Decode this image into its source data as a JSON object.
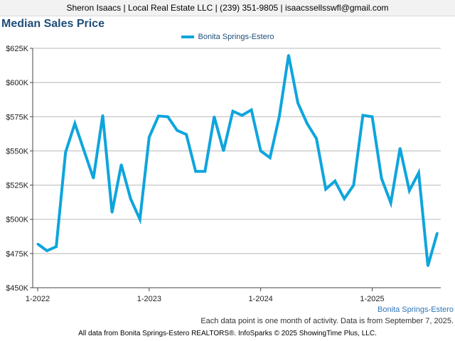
{
  "header": {
    "contact_line": "Sheron Isaacs | Local Real Estate LLC | (239) 351-9805 | isaacssellsswfl@gmail.com"
  },
  "chart_data": {
    "type": "line",
    "title": "Median Sales Price",
    "series": [
      {
        "name": "Bonita Springs-Estero",
        "color": "#0ea5dd",
        "values": [
          482000,
          477000,
          480000,
          549000,
          570000,
          550000,
          530000,
          576000,
          505000,
          540000,
          515000,
          500000,
          560000,
          575500,
          575000,
          565000,
          562000,
          535000,
          535000,
          575000,
          550000,
          579000,
          576000,
          580000,
          550000,
          545000,
          575000,
          620000,
          585000,
          570000,
          559000,
          522000,
          528000,
          515000,
          525000,
          576000,
          575000,
          530000,
          512000,
          552000,
          521000,
          534000,
          466000,
          490000
        ]
      }
    ],
    "x_start": "2022-01",
    "x_interval": "month",
    "x_ticks": [
      "1-2022",
      "1-2023",
      "1-2024",
      "1-2025"
    ],
    "y_ticks": [
      "$450K",
      "$475K",
      "$500K",
      "$525K",
      "$550K",
      "$575K",
      "$600K",
      "$625K"
    ],
    "ylim": [
      450000,
      625000
    ],
    "grid": true,
    "legend": "top-center"
  },
  "notes": {
    "series_label": "Bonita Springs-Estero",
    "data_note": "Each data point is one month of activity. Data is from September 7, 2025.",
    "footer": "All data from Bonita Springs-Estero REALTORS®. InfoSparks © 2025 ShowingTime Plus, LLC."
  }
}
